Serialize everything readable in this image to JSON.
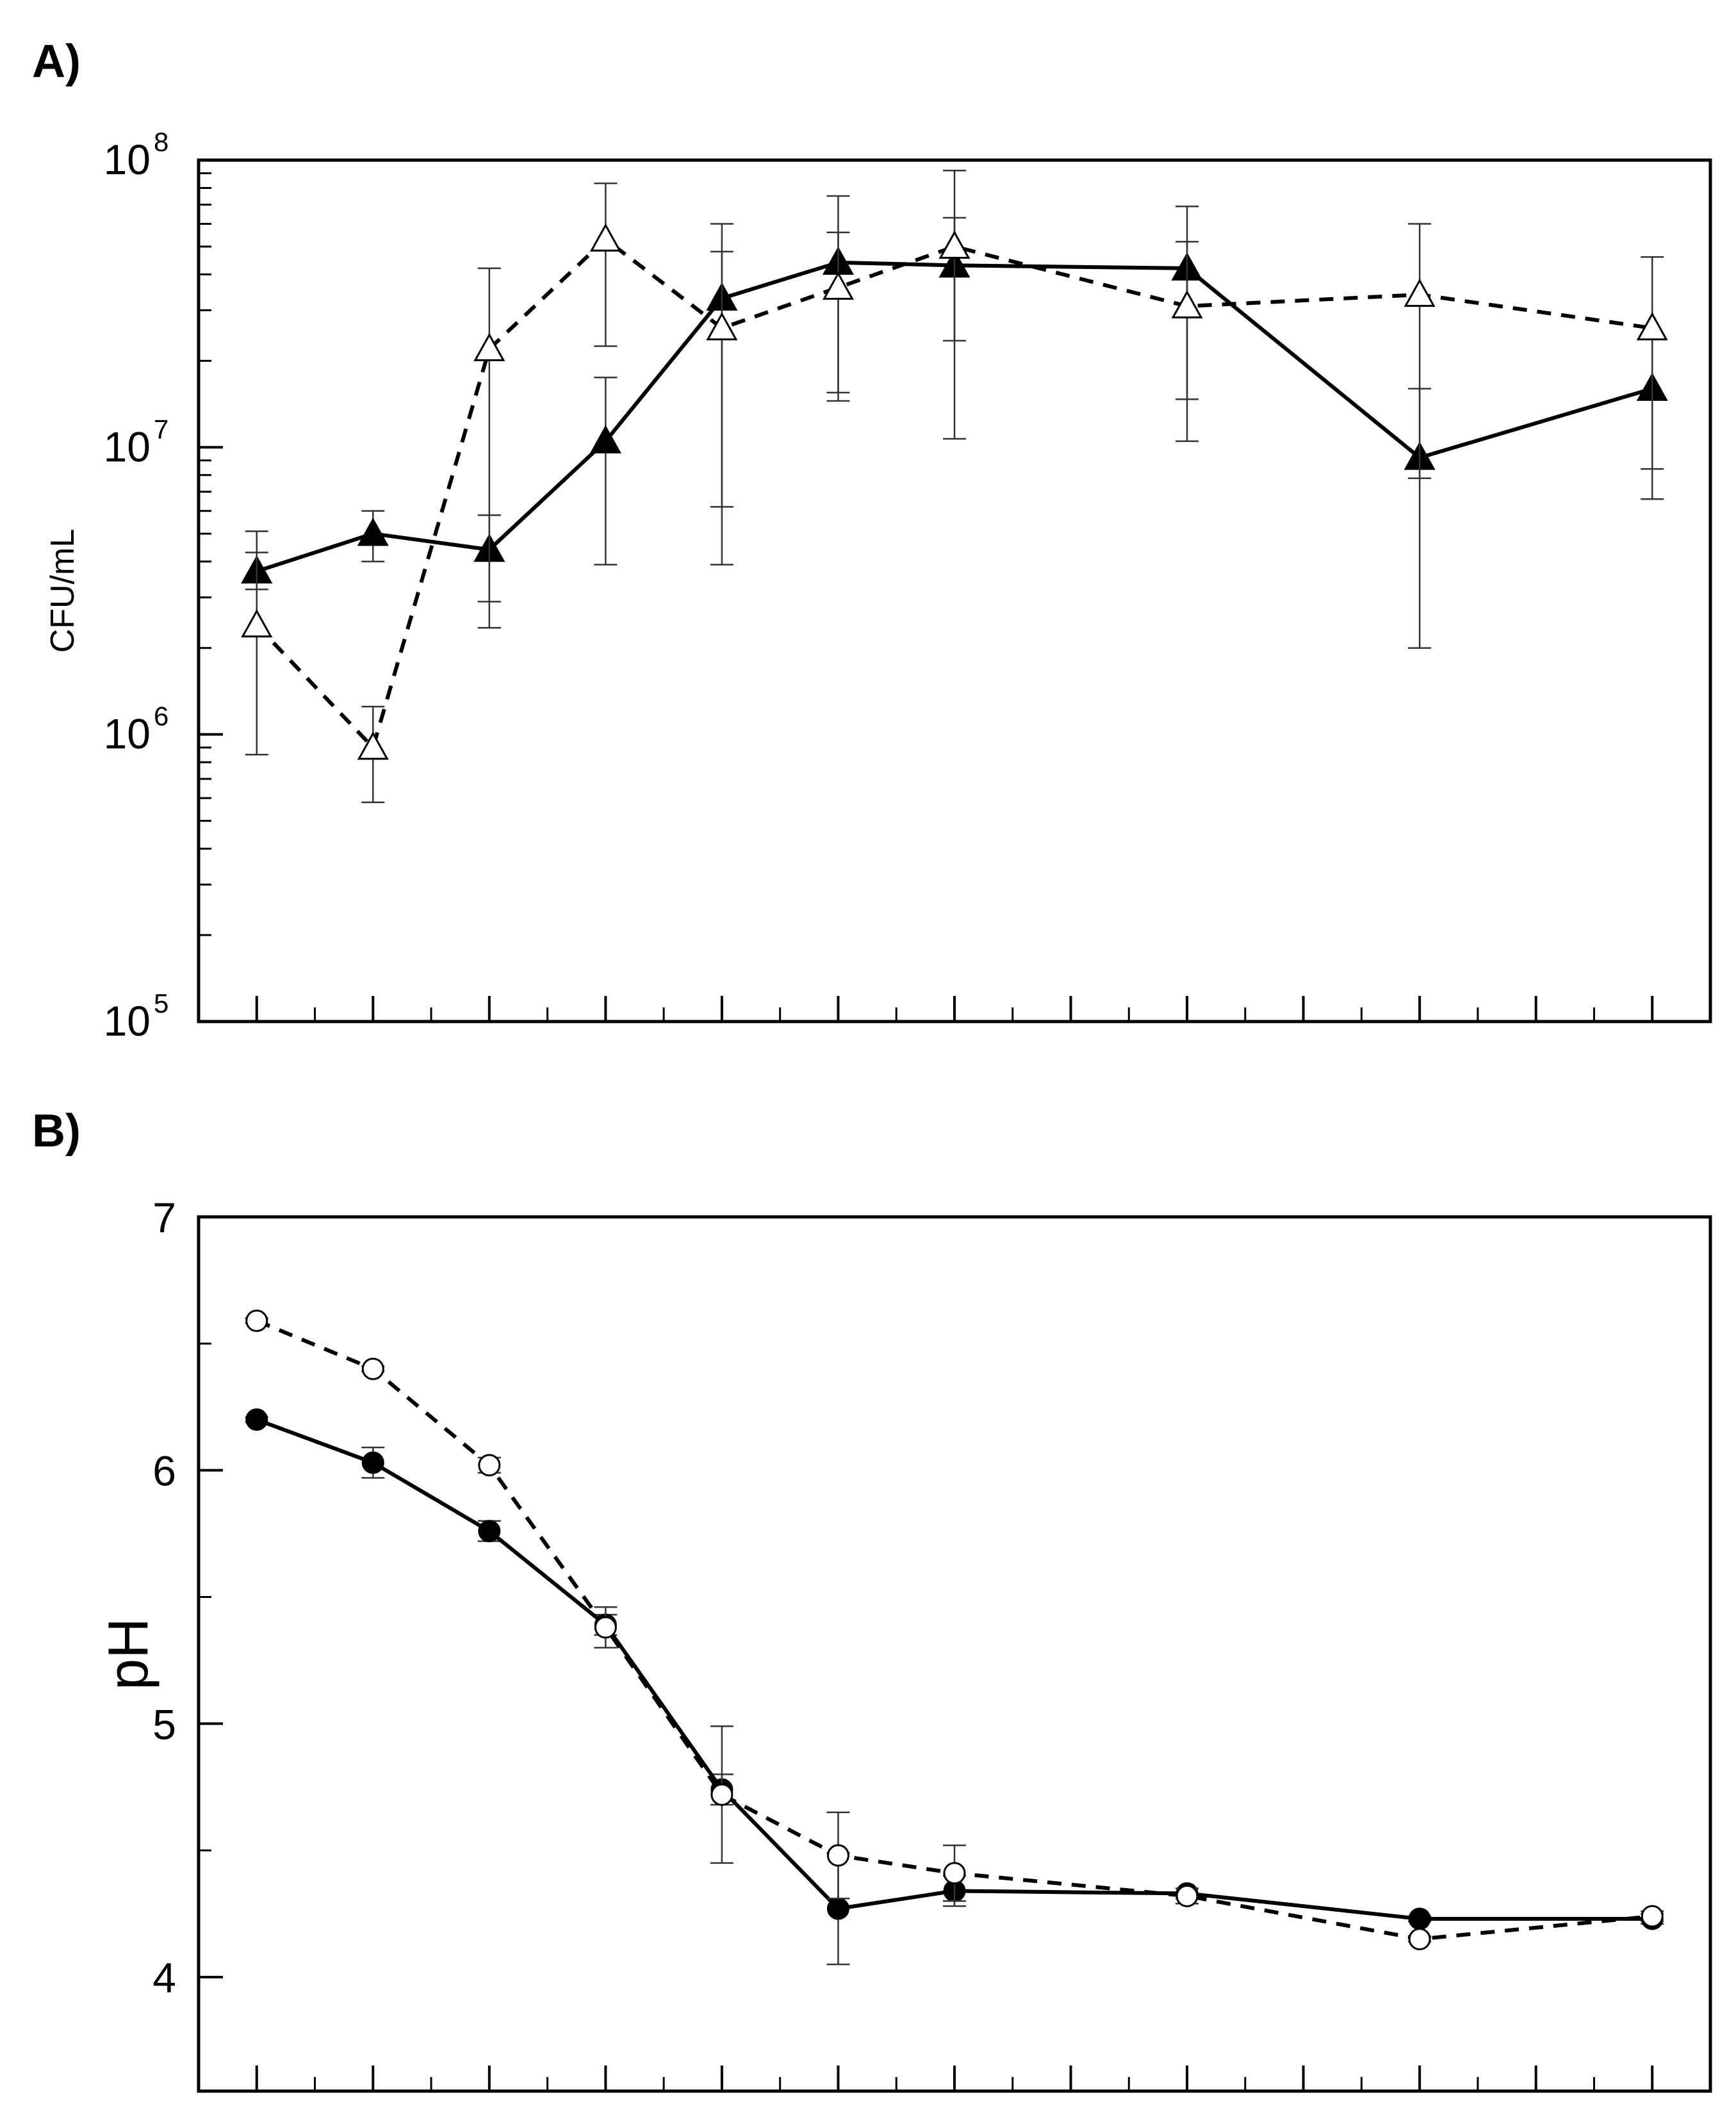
{
  "chart_data": [
    {
      "panel": "A)",
      "type": "line",
      "yscale": "log",
      "ylabel": "CFU/mL",
      "ylim": [
        100000,
        100000000
      ],
      "yticks": [
        {
          "value": 100000,
          "base": "10",
          "exp": "5"
        },
        {
          "value": 1000000,
          "base": "10",
          "exp": "6"
        },
        {
          "value": 10000000,
          "base": "10",
          "exp": "7"
        },
        {
          "value": 100000000,
          "base": "10",
          "exp": "8"
        }
      ],
      "x": [
        1,
        2,
        3,
        4,
        5,
        6,
        7,
        9,
        11,
        13
      ],
      "xlim": [
        0.5,
        13.5
      ],
      "xticks_major": [
        1,
        2,
        3,
        4,
        5,
        6,
        7,
        8,
        9,
        10,
        11,
        12,
        13
      ],
      "series": [
        {
          "name": "filled triangles (solid line)",
          "marker": "triangle-filled",
          "line": "solid",
          "values": [
            3700000,
            5000000,
            4400000,
            10500000,
            33000000,
            44000000,
            43000000,
            42000000,
            9200000,
            16000000
          ],
          "err_low": [
            3200000,
            4000000,
            2900000,
            3900000,
            6200000,
            14500000,
            10700000,
            14700000,
            2000000,
            8400000
          ],
          "err_high": [
            4300000,
            6000000,
            5800000,
            17500000,
            60000000,
            75000000,
            63000000,
            69000000,
            16000000,
            24000000
          ]
        },
        {
          "name": "open triangles (dashed line)",
          "marker": "triangle-open",
          "line": "dashed",
          "values": [
            2400000,
            900000,
            22000000,
            53000000,
            26000000,
            36000000,
            50000000,
            31000000,
            34000000,
            26000000
          ],
          "err_low": [
            850000,
            580000,
            2350000,
            22500000,
            3900000,
            15500000,
            23500000,
            10500000,
            7800000,
            6600000
          ],
          "err_high": [
            5100000,
            1250000,
            42000000,
            83000000,
            48000000,
            56000000,
            92000000,
            52000000,
            60000000,
            46000000
          ]
        }
      ]
    },
    {
      "panel": "B)",
      "type": "line",
      "ylabel": "pH",
      "ylim": [
        3.55,
        7.0
      ],
      "yticks": [
        4,
        5,
        6,
        7
      ],
      "x": [
        1,
        2,
        3,
        4,
        5,
        6,
        7,
        9,
        11,
        13
      ],
      "xlim": [
        0.5,
        13.5
      ],
      "xticks_major": [
        1,
        2,
        3,
        4,
        5,
        6,
        7,
        8,
        9,
        10,
        11,
        12,
        13
      ],
      "series": [
        {
          "name": "filled circles (solid line)",
          "marker": "circle-filled",
          "line": "solid",
          "values": [
            6.2,
            6.03,
            5.76,
            5.39,
            4.74,
            4.27,
            4.34,
            4.33,
            4.23,
            4.23
          ],
          "err": [
            0.01,
            0.06,
            0.04,
            0.04,
            0.06,
            0.22,
            0.06,
            0.02,
            0.01,
            0.02
          ]
        },
        {
          "name": "open circles (dashed line)",
          "marker": "circle-open",
          "line": "dashed",
          "values": [
            6.59,
            6.4,
            6.02,
            5.38,
            4.72,
            4.48,
            4.41,
            4.32,
            4.15,
            4.24
          ],
          "err": [
            0.01,
            0.01,
            0.03,
            0.08,
            0.27,
            0.17,
            0.11,
            0.03,
            0.01,
            0.02
          ]
        }
      ]
    }
  ]
}
